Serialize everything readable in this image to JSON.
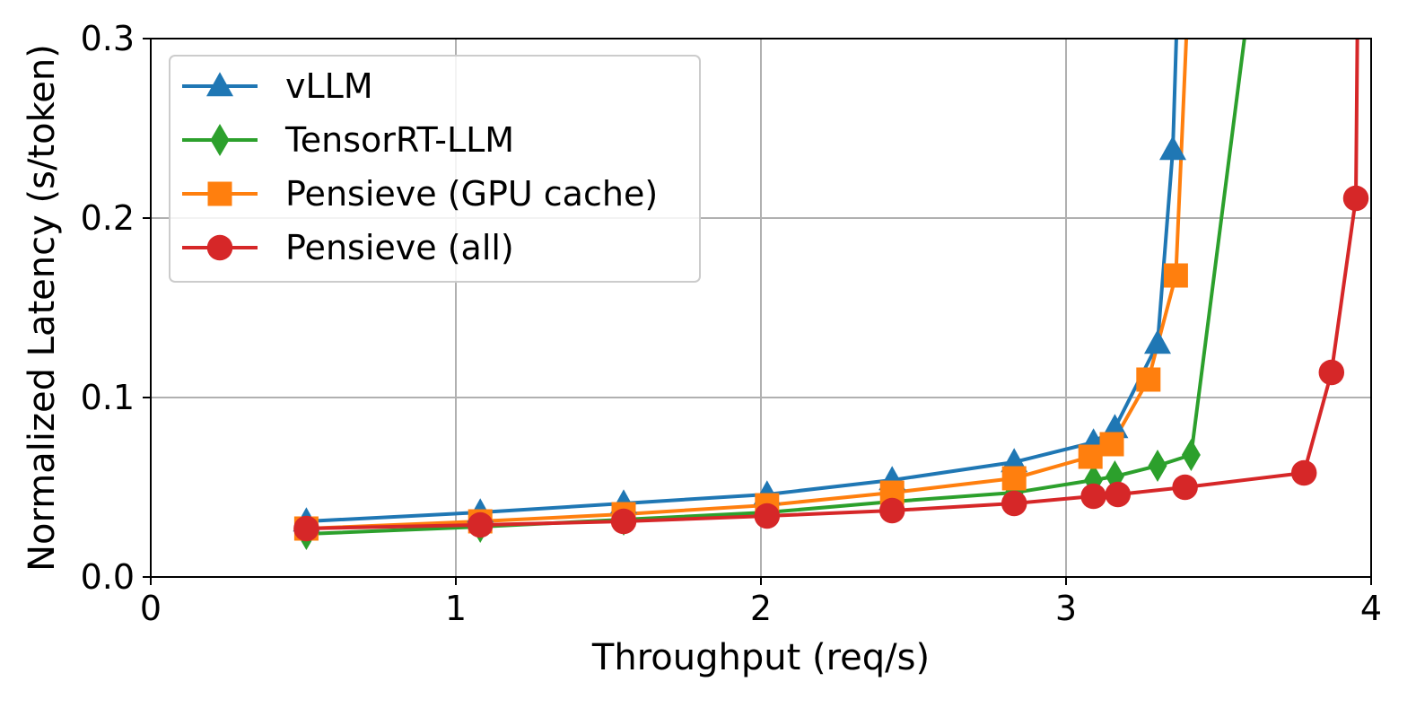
{
  "chart_data": {
    "type": "line",
    "title": "",
    "xlabel": "Throughput (req/s)",
    "ylabel": "Normalized Latency (s/token)",
    "xlim": [
      0,
      4
    ],
    "ylim": [
      0,
      0.3
    ],
    "xticks": [
      0,
      1,
      2,
      3,
      4
    ],
    "xtick_labels": [
      "0",
      "1",
      "2",
      "3",
      "4"
    ],
    "yticks": [
      0.0,
      0.1,
      0.2,
      0.3
    ],
    "ytick_labels": [
      "0.0",
      "0.1",
      "0.2",
      "0.3"
    ],
    "grid": true,
    "legend_position": "top-left",
    "series": [
      {
        "name": "vLLM",
        "color": "#1f77b4",
        "marker": "triangle",
        "x": [
          0.51,
          1.08,
          1.55,
          2.02,
          2.43,
          2.83,
          3.09,
          3.16,
          3.3,
          3.35,
          3.38
        ],
        "y": [
          0.031,
          0.036,
          0.041,
          0.046,
          0.054,
          0.064,
          0.075,
          0.083,
          0.13,
          0.238,
          0.4
        ]
      },
      {
        "name": "TensorRT-LLM",
        "color": "#2ca02c",
        "marker": "diamond",
        "x": [
          0.51,
          1.08,
          1.55,
          2.02,
          2.43,
          2.83,
          3.09,
          3.16,
          3.3,
          3.41,
          3.66
        ],
        "y": [
          0.024,
          0.028,
          0.032,
          0.036,
          0.042,
          0.047,
          0.054,
          0.056,
          0.062,
          0.068,
          0.4
        ]
      },
      {
        "name": "Pensieve (GPU cache)",
        "color": "#ff7f0e",
        "marker": "square",
        "x": [
          0.51,
          1.08,
          1.55,
          2.02,
          2.43,
          2.83,
          3.08,
          3.15,
          3.27,
          3.36,
          3.42
        ],
        "y": [
          0.027,
          0.031,
          0.035,
          0.04,
          0.047,
          0.055,
          0.067,
          0.074,
          0.11,
          0.168,
          0.4
        ]
      },
      {
        "name": "Pensieve (all)",
        "color": "#d62728",
        "marker": "circle",
        "x": [
          0.51,
          1.08,
          1.55,
          2.02,
          2.43,
          2.83,
          3.09,
          3.17,
          3.39,
          3.78,
          3.87,
          3.95,
          3.96
        ],
        "y": [
          0.027,
          0.029,
          0.031,
          0.034,
          0.037,
          0.041,
          0.045,
          0.046,
          0.05,
          0.058,
          0.114,
          0.211,
          0.4
        ]
      }
    ]
  }
}
